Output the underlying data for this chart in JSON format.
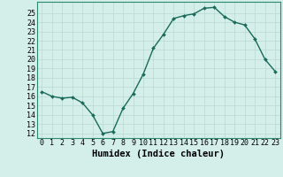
{
  "title": "",
  "xlabel": "Humidex (Indice chaleur)",
  "ylabel": "",
  "x": [
    0,
    1,
    2,
    3,
    4,
    5,
    6,
    7,
    8,
    9,
    10,
    11,
    12,
    13,
    14,
    15,
    16,
    17,
    18,
    19,
    20,
    21,
    22,
    23
  ],
  "y": [
    16.5,
    16.0,
    15.8,
    15.9,
    15.3,
    14.0,
    12.0,
    12.2,
    14.7,
    16.3,
    18.4,
    21.2,
    22.7,
    24.4,
    24.7,
    24.9,
    25.5,
    25.6,
    24.6,
    24.0,
    23.7,
    22.2,
    20.0,
    18.7
  ],
  "line_color": "#1a6b5a",
  "marker": "D",
  "marker_size": 2.0,
  "bg_color": "#d4eeea",
  "grid_color": "#b8d8d4",
  "ylim": [
    12,
    26
  ],
  "xlim": [
    -0.5,
    23.5
  ],
  "yticks": [
    12,
    13,
    14,
    15,
    16,
    17,
    18,
    19,
    20,
    21,
    22,
    23,
    24,
    25
  ],
  "xticks": [
    0,
    1,
    2,
    3,
    4,
    5,
    6,
    7,
    8,
    9,
    10,
    11,
    12,
    13,
    14,
    15,
    16,
    17,
    18,
    19,
    20,
    21,
    22,
    23
  ],
  "xlabel_fontsize": 7.5,
  "tick_fontsize": 6.0,
  "line_width": 1.0,
  "border_color": "#2d8a70"
}
